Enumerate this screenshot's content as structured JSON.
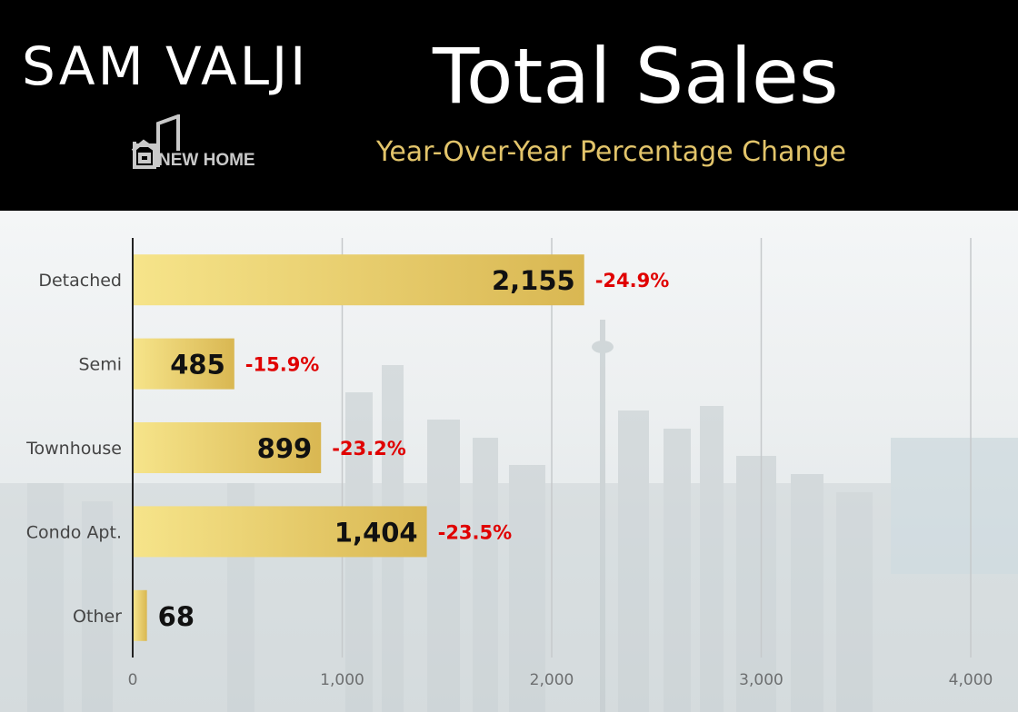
{
  "header": {
    "brand": "SAM VALJI",
    "logo_text": "NEW HOME",
    "title": "Total Sales",
    "subtitle": "Year-Over-Year Percentage Change"
  },
  "colors": {
    "bar_light": "#f6e48a",
    "bar_dark": "#d9b752",
    "change": "#e00000",
    "gridline": "#c6c9cb",
    "axis": "#222222",
    "subtitle": "#e2c46a"
  },
  "chart_data": {
    "type": "bar",
    "orientation": "horizontal",
    "title": "Total Sales",
    "subtitle": "Year-Over-Year Percentage Change",
    "categories": [
      "Detached",
      "Semi",
      "Townhouse",
      "Condo Apt.",
      "Other"
    ],
    "values": [
      2155,
      485,
      899,
      1404,
      68
    ],
    "value_labels": [
      "2,155",
      "485",
      "899",
      "1,404",
      "68"
    ],
    "changes": [
      "-24.9%",
      "-15.9%",
      "-23.2%",
      "-23.5%",
      ""
    ],
    "xlim": [
      0,
      4000
    ],
    "xticks": [
      0,
      1000,
      2000,
      3000,
      4000
    ],
    "xtick_labels": [
      "0",
      "1,000",
      "2,000",
      "3,000",
      "4,000"
    ],
    "grid": true,
    "xlabel": "",
    "ylabel": ""
  }
}
